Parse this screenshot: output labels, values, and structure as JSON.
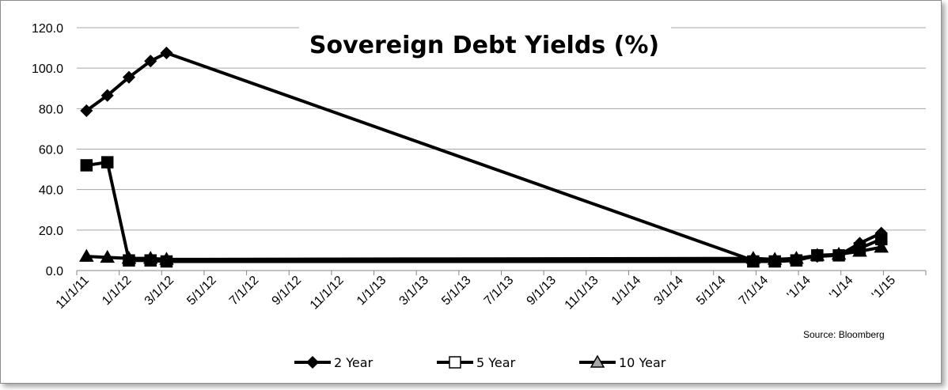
{
  "chart_data": {
    "type": "line",
    "title": "Sovereign Debt Yields (%)",
    "source": "Source: Bloomberg",
    "ylim": [
      0,
      120
    ],
    "y_ticks": [
      "0.0",
      "20.0",
      "40.0",
      "60.0",
      "80.0",
      "100.0",
      "120.0"
    ],
    "x_ticks": [
      "11/1/11",
      "1/1/12",
      "3/1/12",
      "5/1/12",
      "7/1/12",
      "9/1/12",
      "11/1/12",
      "1/1/13",
      "3/1/13",
      "5/1/13",
      "7/1/13",
      "9/1/13",
      "11/1/13",
      "1/1/14",
      "3/1/14",
      "5/1/14",
      "7/1/14",
      "'1/14",
      "'1/14",
      "'1/15"
    ],
    "grid": "horizontal",
    "legend_position": "bottom",
    "series": [
      {
        "name": "2 Year",
        "marker": "diamond",
        "points": [
          [
            "2011-11-15",
            79
          ],
          [
            "2011-12-15",
            86.5
          ],
          [
            "2012-01-15",
            95.5
          ],
          [
            "2012-02-15",
            103.5
          ],
          [
            "2012-03-09",
            107.5
          ],
          [
            "2014-06-30",
            5
          ],
          [
            "2014-07-31",
            4.8
          ],
          [
            "2014-08-31",
            5.5
          ],
          [
            "2014-09-30",
            7
          ],
          [
            "2014-10-31",
            7.5
          ],
          [
            "2014-11-30",
            13.5
          ],
          [
            "2014-12-31",
            18.5
          ]
        ]
      },
      {
        "name": "5 Year",
        "marker": "square",
        "points": [
          [
            "2011-11-15",
            52
          ],
          [
            "2011-12-15",
            53.5
          ],
          [
            "2012-01-15",
            5
          ],
          [
            "2012-02-15",
            5
          ],
          [
            "2012-03-09",
            4.5
          ],
          [
            "2014-06-30",
            4.5
          ],
          [
            "2014-07-31",
            4.5
          ],
          [
            "2014-08-31",
            5
          ],
          [
            "2014-09-30",
            7.5
          ],
          [
            "2014-10-31",
            7.5
          ],
          [
            "2014-11-30",
            11
          ],
          [
            "2014-12-31",
            15.5
          ]
        ]
      },
      {
        "name": "10 Year",
        "marker": "triangle",
        "points": [
          [
            "2011-11-15",
            7
          ],
          [
            "2011-12-15",
            6.5
          ],
          [
            "2012-01-15",
            6
          ],
          [
            "2012-02-15",
            6
          ],
          [
            "2012-03-09",
            5.5
          ],
          [
            "2014-06-30",
            6
          ],
          [
            "2014-07-31",
            5.5
          ],
          [
            "2014-08-31",
            6
          ],
          [
            "2014-09-30",
            7.5
          ],
          [
            "2014-10-31",
            8
          ],
          [
            "2014-11-30",
            9.5
          ],
          [
            "2014-12-31",
            11.5
          ]
        ]
      }
    ]
  }
}
